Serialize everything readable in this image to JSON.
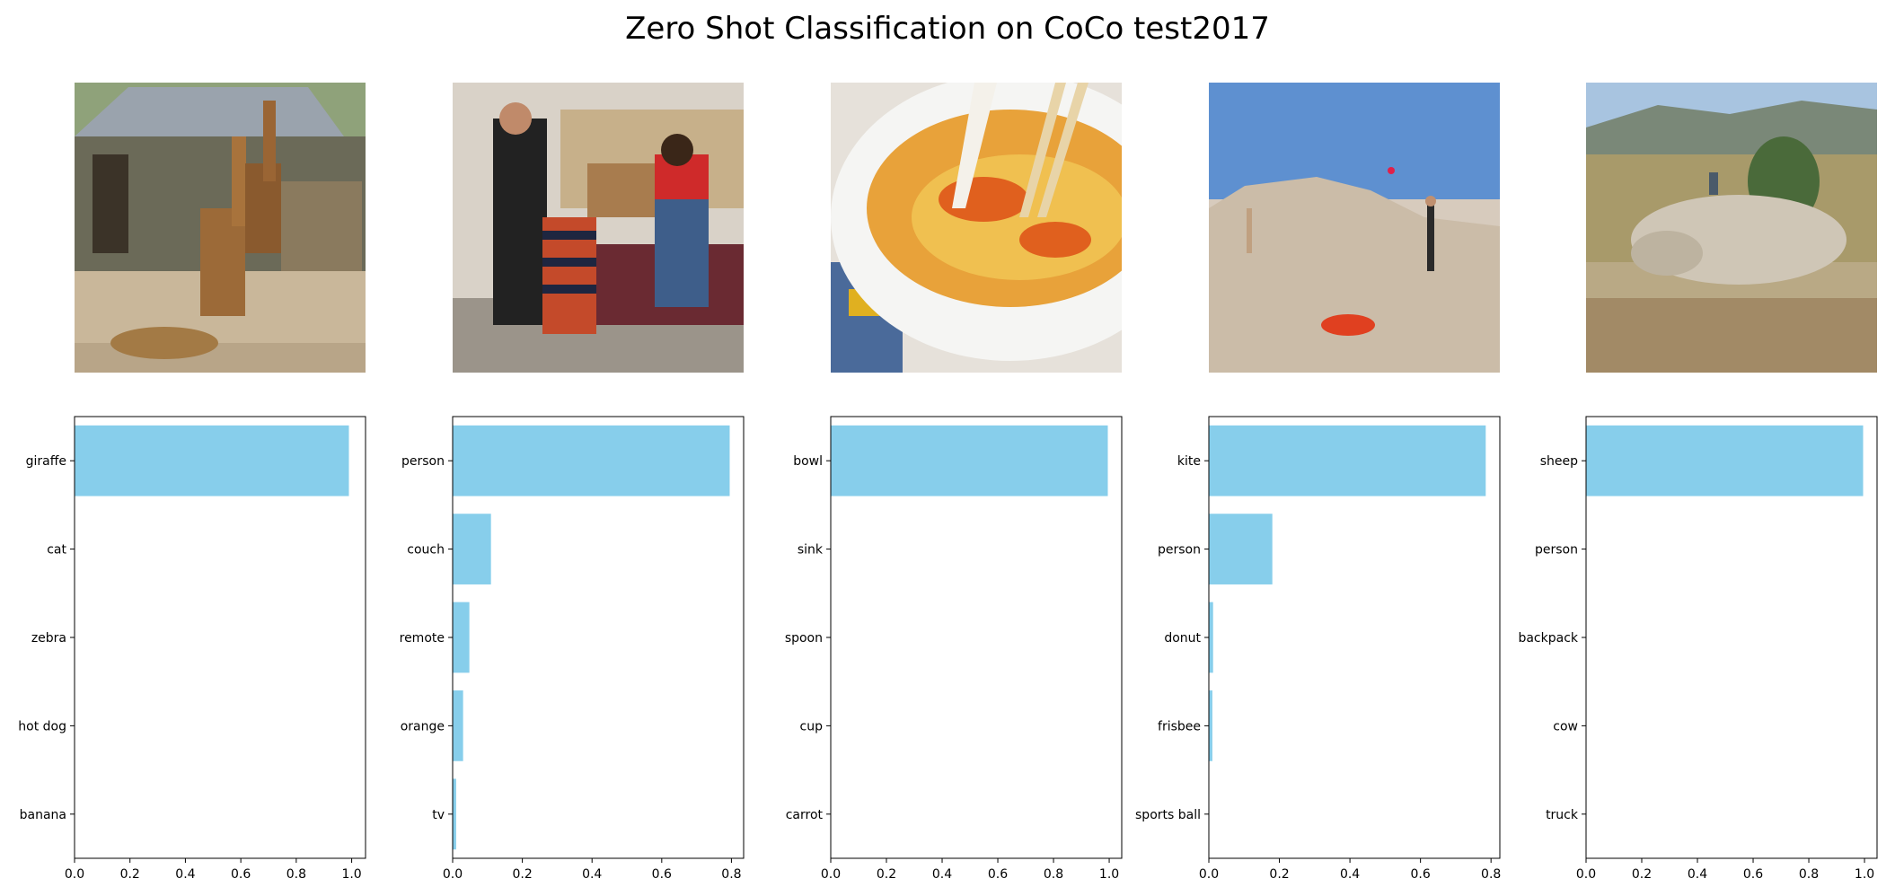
{
  "title": "Zero Shot Classification on CoCo test2017",
  "colors": {
    "bar": "#87CEEB",
    "axis": "#000000"
  },
  "images": [
    {
      "subject": "giraffes-photo"
    },
    {
      "subject": "family-playing-photo"
    },
    {
      "subject": "noodle-bowl-photo"
    },
    {
      "subject": "beach-kite-photo"
    },
    {
      "subject": "sheep-flock-photo"
    }
  ],
  "chart_data": [
    {
      "type": "bar",
      "orientation": "horizontal",
      "categories": [
        "giraffe",
        "cat",
        "zebra",
        "hot dog",
        "banana"
      ],
      "values": [
        0.99,
        0.0,
        0.0,
        0.0,
        0.0
      ],
      "xlim": [
        0,
        1.05
      ],
      "xticks": [
        "0.0",
        "0.2",
        "0.4",
        "0.6",
        "0.8",
        "1.0"
      ]
    },
    {
      "type": "bar",
      "orientation": "horizontal",
      "categories": [
        "person",
        "couch",
        "remote",
        "orange",
        "tv"
      ],
      "values": [
        0.795,
        0.11,
        0.048,
        0.03,
        0.01
      ],
      "xlim": [
        0,
        0.835
      ],
      "xticks": [
        "0.0",
        "0.2",
        "0.4",
        "0.6",
        "0.8"
      ]
    },
    {
      "type": "bar",
      "orientation": "horizontal",
      "categories": [
        "bowl",
        "sink",
        "spoon",
        "cup",
        "carrot"
      ],
      "values": [
        0.995,
        0.0,
        0.0,
        0.0,
        0.0
      ],
      "xlim": [
        0,
        1.045
      ],
      "xticks": [
        "0.0",
        "0.2",
        "0.4",
        "0.6",
        "0.8",
        "1.0"
      ]
    },
    {
      "type": "bar",
      "orientation": "horizontal",
      "categories": [
        "kite",
        "person",
        "donut",
        "frisbee",
        "sports ball"
      ],
      "values": [
        0.785,
        0.18,
        0.012,
        0.01,
        0.0
      ],
      "xlim": [
        0,
        0.825
      ],
      "xticks": [
        "0.0",
        "0.2",
        "0.4",
        "0.6",
        "0.8"
      ]
    },
    {
      "type": "bar",
      "orientation": "horizontal",
      "categories": [
        "sheep",
        "person",
        "backpack",
        "cow",
        "truck"
      ],
      "values": [
        0.995,
        0.0,
        0.0,
        0.0,
        0.0
      ],
      "xlim": [
        0,
        1.045
      ],
      "xticks": [
        "0.0",
        "0.2",
        "0.4",
        "0.6",
        "0.8",
        "1.0"
      ]
    }
  ]
}
